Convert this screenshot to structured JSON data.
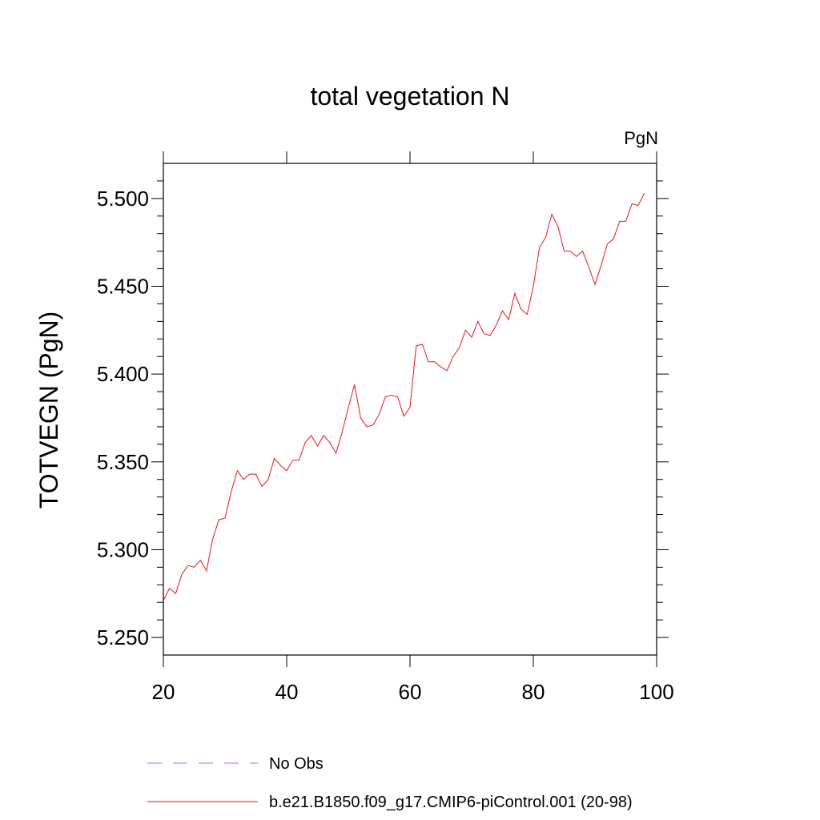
{
  "chart_data": {
    "type": "line",
    "title": "total vegetation N",
    "units": "PgN",
    "xlabel": "",
    "ylabel": "TOTVEGN  (PgN)",
    "xlim": [
      20,
      100
    ],
    "ylim": [
      5.24,
      5.52
    ],
    "xticks": [
      20,
      40,
      60,
      80,
      100
    ],
    "xtick_labels": [
      "20",
      "40",
      "60",
      "80",
      "100"
    ],
    "yticks": [
      5.25,
      5.3,
      5.35,
      5.4,
      5.45,
      5.5
    ],
    "ytick_labels": [
      "5.250",
      "5.300",
      "5.350",
      "5.400",
      "5.450",
      "5.500"
    ],
    "grid": false,
    "legend_position": "bottom",
    "series": [
      {
        "name": "b.e21.B1850.f09_g17.CMIP6-piControl.001 (20-98)",
        "color": "#e8141e",
        "style": "solid",
        "x": [
          20,
          21,
          22,
          23,
          24,
          25,
          26,
          27,
          28,
          29,
          30,
          31,
          32,
          33,
          34,
          35,
          36,
          37,
          38,
          39,
          40,
          41,
          42,
          43,
          44,
          45,
          46,
          47,
          48,
          49,
          50,
          51,
          52,
          53,
          54,
          55,
          56,
          57,
          58,
          59,
          60,
          61,
          62,
          63,
          64,
          65,
          66,
          67,
          68,
          69,
          70,
          71,
          72,
          73,
          74,
          75,
          76,
          77,
          78,
          79,
          80,
          81,
          82,
          83,
          84,
          85,
          86,
          87,
          88,
          89,
          90,
          91,
          92,
          93,
          94,
          95,
          96,
          97,
          98
        ],
        "values": [
          5.271,
          5.278,
          5.275,
          5.286,
          5.291,
          5.29,
          5.294,
          5.288,
          5.306,
          5.317,
          5.318,
          5.333,
          5.345,
          5.34,
          5.343,
          5.343,
          5.336,
          5.34,
          5.352,
          5.348,
          5.345,
          5.351,
          5.351,
          5.361,
          5.365,
          5.359,
          5.365,
          5.361,
          5.355,
          5.367,
          5.381,
          5.394,
          5.375,
          5.37,
          5.371,
          5.377,
          5.387,
          5.388,
          5.387,
          5.376,
          5.381,
          5.416,
          5.417,
          5.407,
          5.407,
          5.404,
          5.402,
          5.41,
          5.415,
          5.425,
          5.421,
          5.43,
          5.423,
          5.422,
          5.428,
          5.436,
          5.431,
          5.446,
          5.437,
          5.434,
          5.45,
          5.472,
          5.478,
          5.491,
          5.484,
          5.47,
          5.47,
          5.467,
          5.47,
          5.461,
          5.451,
          5.462,
          5.474,
          5.477,
          5.487,
          5.487,
          5.497,
          5.496,
          5.503
        ]
      },
      {
        "name": "No Obs",
        "color": "#8c7ee0",
        "style": "dashed",
        "x": [],
        "values": []
      }
    ]
  }
}
